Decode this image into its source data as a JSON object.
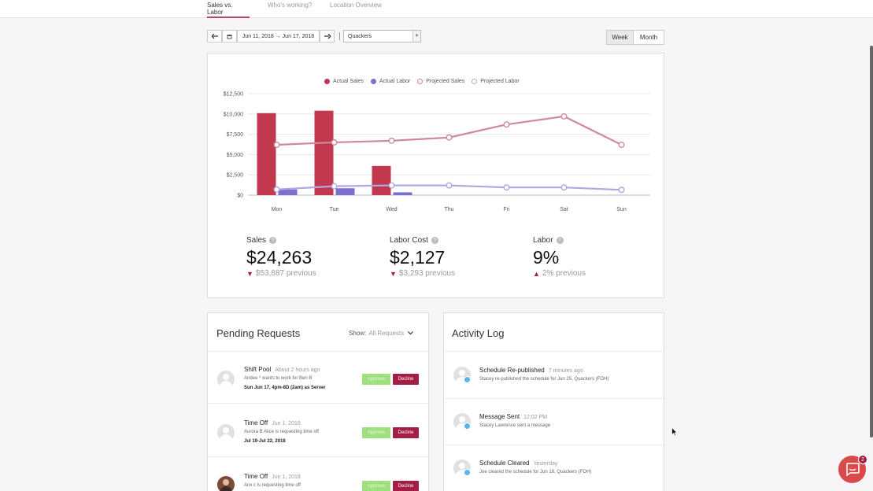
{
  "tabs": [
    {
      "label": "Sales vs. Labor",
      "active": true
    },
    {
      "label": "Who's working?",
      "active": false
    },
    {
      "label": "Location Overview",
      "active": false
    }
  ],
  "toolbar": {
    "prev_icon": "arrow-left-icon",
    "calendar_icon": "calendar-icon",
    "date_range": "Jun 11, 2018 → Jun 17, 2018",
    "next_icon": "arrow-right-icon",
    "location": "Quackers"
  },
  "period": {
    "week": "Week",
    "month": "Month",
    "selected": "Week"
  },
  "chart_data": {
    "type": "bar",
    "categories": [
      "Mon",
      "Tue",
      "Wed",
      "Thu",
      "Fri",
      "Sat",
      "Sun"
    ],
    "y_ticks": [
      "$12,500",
      "$10,000",
      "$7,500",
      "$5,000",
      "$2,500",
      "$0"
    ],
    "ylim": [
      0,
      12500
    ],
    "grid": true,
    "legend_position": "top",
    "series": [
      {
        "name": "Actual Sales",
        "type": "bar",
        "color": "#c2384f",
        "values": [
          10100,
          10400,
          3600,
          null,
          null,
          null,
          null
        ]
      },
      {
        "name": "Actual Labor",
        "type": "bar",
        "color": "#7b6fd0",
        "values": [
          700,
          850,
          350,
          null,
          null,
          null,
          null
        ]
      },
      {
        "name": "Projected Sales",
        "type": "line",
        "color": "#cf8a98",
        "values": [
          6200,
          6500,
          6700,
          7100,
          8700,
          9700,
          6200
        ]
      },
      {
        "name": "Projected Labor",
        "type": "line",
        "color": "#b0a8e0",
        "values": [
          700,
          1100,
          1200,
          1200,
          950,
          950,
          650
        ]
      }
    ]
  },
  "kpis": [
    {
      "label": "Sales",
      "value": "$24,263",
      "prev": "$53,887 previous",
      "trend": "down"
    },
    {
      "label": "Labor Cost",
      "value": "$2,127",
      "prev": "$3,293 previous",
      "trend": "down"
    },
    {
      "label": "Labor",
      "value": "9%",
      "prev": "2% previous",
      "trend": "up"
    }
  ],
  "pending": {
    "title": "Pending Requests",
    "show_label": "Show:",
    "show_value": "All Requests",
    "approve_label": "Approve",
    "decline_label": "Decline",
    "items": [
      {
        "title": "Shift Pool",
        "time": "About 2 hours ago",
        "desc": "Andee * wants to work for Ben B",
        "detail": "Sun Jun 17, 4pm-8D (2am) as Server"
      },
      {
        "title": "Time Off",
        "time": "Jun 1, 2018",
        "desc": "Aurora B Alice is requesting time off",
        "detail": "Jul 19-Jul 22, 2018"
      },
      {
        "title": "Time Off",
        "time": "Jun 1, 2018",
        "desc": "Anx c is requesting time off",
        "detail": ""
      }
    ]
  },
  "activity": {
    "title": "Activity Log",
    "items": [
      {
        "title": "Schedule Re-published",
        "time": "7 minutes ago",
        "desc": "Stacey re-published the schedule for Jun 25, Quackers (FOH)"
      },
      {
        "title": "Message Sent",
        "time": "12:02 PM",
        "desc": "Stacey Lawrence sent a message"
      },
      {
        "title": "Schedule Cleared",
        "time": "Yesterday",
        "desc": "Joe cleared the schedule for Jun 18, Quackers (FOH)"
      }
    ]
  },
  "chat": {
    "badge": "2",
    "icon": "chat-icon"
  }
}
